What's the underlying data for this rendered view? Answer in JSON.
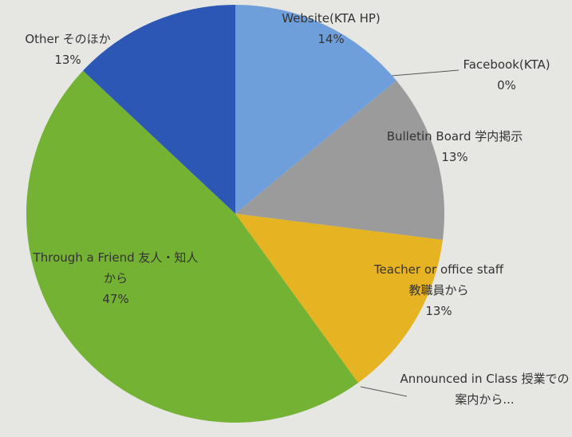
{
  "chart_data": {
    "type": "pie",
    "categories": [
      "Website(KTA HP)",
      "Facebook(KTA)",
      "Bulletin Board 学内掲示",
      "Teacher or office staff 教職員から",
      "Announced in Class 授業での案内から...",
      "Through a Friend 友人・知人から",
      "Other そのほか"
    ],
    "values": [
      14,
      0,
      13,
      13,
      0,
      47,
      13
    ],
    "value_labels": [
      "14%",
      "0%",
      "13%",
      "13%",
      null,
      "47%",
      "13%"
    ],
    "colors": [
      "#6f9fdb",
      "#5a8fd0",
      "#9b9b9b",
      "#e6b322",
      "#a8c83a",
      "#74b233",
      "#2d57b5"
    ]
  }
}
